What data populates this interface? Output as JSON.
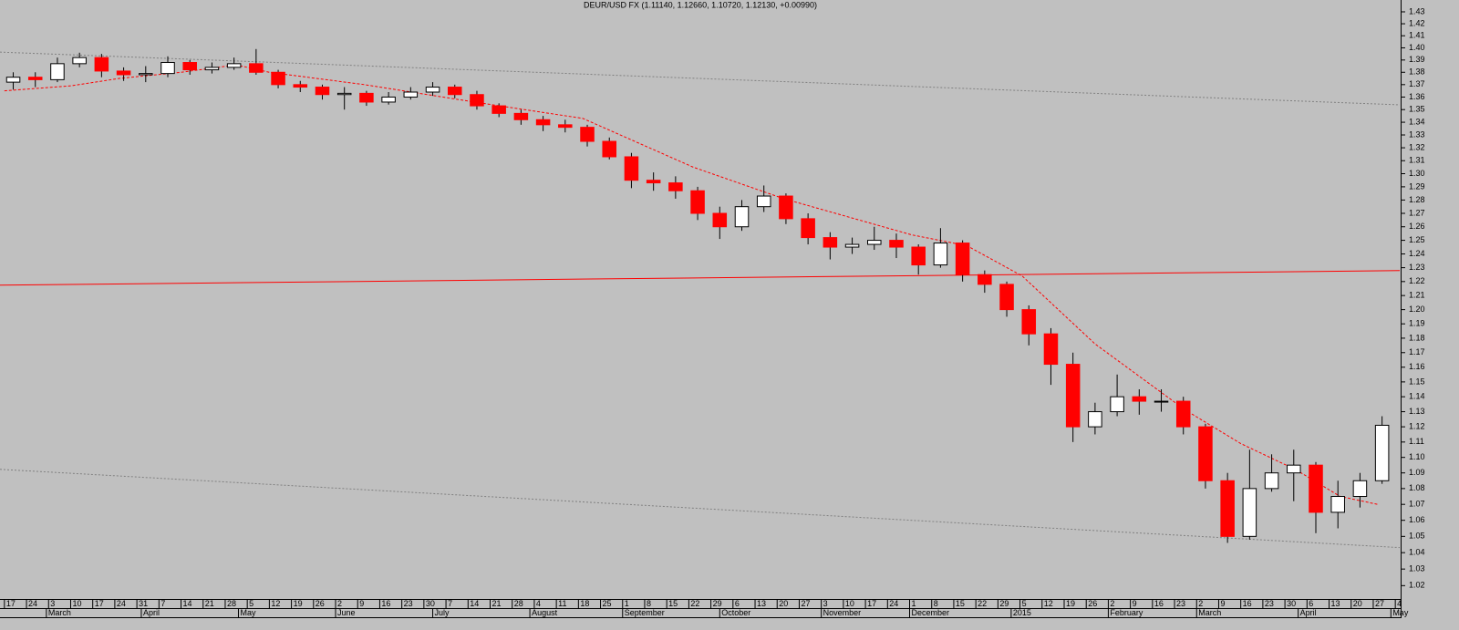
{
  "chart_data": {
    "type": "candlestick",
    "title": "DEUR/USD FX (1.11140, 1.12660, 1.10720, 1.12130, +0.00990)",
    "log_scale": true,
    "up_color": "#ffffff",
    "down_color": "#ff0000",
    "xlim": [
      -0.2,
      63.2
    ],
    "ylim": [
      1.012,
      1.44
    ],
    "yticks": [
      1.02,
      1.03,
      1.04,
      1.05,
      1.06,
      1.07,
      1.08,
      1.09,
      {
        "value": 1.1,
        "label": "1.10"
      },
      1.11,
      1.12,
      1.13,
      1.14,
      1.15,
      1.16,
      1.17,
      1.18,
      1.19,
      {
        "value": 1.2,
        "label": "1.20"
      },
      1.21,
      1.22,
      1.23,
      1.24,
      1.25,
      1.26,
      1.27,
      1.28,
      1.29,
      {
        "value": 1.3,
        "label": "1.30"
      },
      1.31,
      1.32,
      1.33,
      1.34,
      1.35,
      1.36,
      1.37,
      1.38,
      1.39,
      {
        "value": 1.4,
        "label": "1.40"
      },
      1.41,
      1.42,
      1.43
    ],
    "xticks": [
      {
        "value": 0,
        "label": "17"
      },
      {
        "value": 1,
        "label": "24"
      },
      {
        "value": 2,
        "label": "3"
      },
      {
        "value": 3,
        "label": "10"
      },
      {
        "value": 4,
        "label": "17"
      },
      {
        "value": 5,
        "label": "24"
      },
      {
        "value": 6,
        "label": "31"
      },
      {
        "value": 7,
        "label": "7"
      },
      {
        "value": 8,
        "label": "14"
      },
      {
        "value": 9,
        "label": "21"
      },
      {
        "value": 10,
        "label": "28"
      },
      {
        "value": 11,
        "label": "5"
      },
      {
        "value": 12,
        "label": "12"
      },
      {
        "value": 13,
        "label": "19"
      },
      {
        "value": 14,
        "label": "26"
      },
      {
        "value": 15,
        "label": "2"
      },
      {
        "value": 16,
        "label": "9"
      },
      {
        "value": 17,
        "label": "16"
      },
      {
        "value": 18,
        "label": "23"
      },
      {
        "value": 19,
        "label": "30"
      },
      {
        "value": 20,
        "label": "7"
      },
      {
        "value": 21,
        "label": "14"
      },
      {
        "value": 22,
        "label": "21"
      },
      {
        "value": 23,
        "label": "28"
      },
      {
        "value": 24,
        "label": "4"
      },
      {
        "value": 25,
        "label": "11"
      },
      {
        "value": 26,
        "label": "18"
      },
      {
        "value": 27,
        "label": "25"
      },
      {
        "value": 28,
        "label": "1"
      },
      {
        "value": 29,
        "label": "8"
      },
      {
        "value": 30,
        "label": "15"
      },
      {
        "value": 31,
        "label": "22"
      },
      {
        "value": 32,
        "label": "29"
      },
      {
        "value": 33,
        "label": "6"
      },
      {
        "value": 34,
        "label": "13"
      },
      {
        "value": 35,
        "label": "20"
      },
      {
        "value": 36,
        "label": "27"
      },
      {
        "value": 37,
        "label": "3"
      },
      {
        "value": 38,
        "label": "10"
      },
      {
        "value": 39,
        "label": "17"
      },
      {
        "value": 40,
        "label": "24"
      },
      {
        "value": 41,
        "label": "1"
      },
      {
        "value": 42,
        "label": "8"
      },
      {
        "value": 43,
        "label": "15"
      },
      {
        "value": 44,
        "label": "22"
      },
      {
        "value": 45,
        "label": "29"
      },
      {
        "value": 46,
        "label": "5"
      },
      {
        "value": 47,
        "label": "12"
      },
      {
        "value": 48,
        "label": "19"
      },
      {
        "value": 49,
        "label": "26"
      },
      {
        "value": 50,
        "label": "2"
      },
      {
        "value": 51,
        "label": "9"
      },
      {
        "value": 52,
        "label": "16"
      },
      {
        "value": 53,
        "label": "23"
      },
      {
        "value": 54,
        "label": "2"
      },
      {
        "value": 55,
        "label": "9"
      },
      {
        "value": 56,
        "label": "16"
      },
      {
        "value": 57,
        "label": "23"
      },
      {
        "value": 58,
        "label": "30"
      },
      {
        "value": 59,
        "label": "6"
      },
      {
        "value": 60,
        "label": "13"
      },
      {
        "value": 61,
        "label": "20"
      },
      {
        "value": 62,
        "label": "27"
      },
      {
        "value": 63,
        "label": "4"
      }
    ],
    "month_labels": [
      {
        "value": 1.9,
        "label": "March"
      },
      {
        "value": 6.2,
        "label": "April"
      },
      {
        "value": 10.6,
        "label": "May"
      },
      {
        "value": 15,
        "label": "June"
      },
      {
        "value": 19.4,
        "label": "July"
      },
      {
        "value": 23.8,
        "label": "August"
      },
      {
        "value": 28,
        "label": "September"
      },
      {
        "value": 32.4,
        "label": "October"
      },
      {
        "value": 37,
        "label": "November"
      },
      {
        "value": 41,
        "label": "December"
      },
      {
        "value": 45.6,
        "label": "2015"
      },
      {
        "value": 50,
        "label": "February"
      },
      {
        "value": 54,
        "label": "March"
      },
      {
        "value": 58.6,
        "label": "April"
      },
      {
        "value": 62.8,
        "label": "May"
      }
    ],
    "x": [
      0.4,
      1.4,
      2.4,
      3.4,
      4.4,
      5.4,
      6.4,
      7.4,
      8.4,
      9.4,
      10.4,
      11.4,
      12.4,
      13.4,
      14.4,
      15.4,
      16.4,
      17.4,
      18.4,
      19.4,
      20.4,
      21.4,
      22.4,
      23.4,
      24.4,
      25.4,
      26.4,
      27.4,
      28.4,
      29.4,
      30.4,
      31.4,
      32.4,
      33.4,
      34.4,
      35.4,
      36.4,
      37.4,
      38.4,
      39.4,
      40.4,
      41.4,
      42.4,
      43.4,
      44.4,
      45.4,
      46.4,
      47.4,
      48.4,
      49.4,
      50.4,
      51.4,
      52.4,
      53.4,
      54.4,
      55.4,
      56.4,
      57.4,
      58.4,
      59.4,
      60.4,
      61.4,
      62.4
    ],
    "open": [
      1.372,
      1.376,
      1.374,
      1.387,
      1.392,
      1.381,
      1.378,
      1.379,
      1.388,
      1.382,
      1.384,
      1.387,
      1.38,
      1.37,
      1.368,
      1.362,
      1.363,
      1.356,
      1.36,
      1.364,
      1.368,
      1.362,
      1.353,
      1.347,
      1.342,
      1.338,
      1.336,
      1.325,
      1.313,
      1.295,
      1.293,
      1.287,
      1.27,
      1.26,
      1.275,
      1.283,
      1.266,
      1.252,
      1.245,
      1.247,
      1.25,
      1.245,
      1.232,
      1.248,
      1.225,
      1.218,
      1.2,
      1.183,
      1.162,
      1.12,
      1.13,
      1.14,
      1.137,
      1.137,
      1.12,
      1.085,
      1.05,
      1.08,
      1.09,
      1.095,
      1.065,
      1.075,
      1.085
    ],
    "high": [
      1.38,
      1.38,
      1.392,
      1.396,
      1.395,
      1.384,
      1.385,
      1.393,
      1.39,
      1.388,
      1.392,
      1.399,
      1.382,
      1.373,
      1.37,
      1.368,
      1.365,
      1.364,
      1.368,
      1.372,
      1.37,
      1.365,
      1.355,
      1.35,
      1.345,
      1.342,
      1.338,
      1.328,
      1.316,
      1.301,
      1.298,
      1.29,
      1.275,
      1.28,
      1.291,
      1.285,
      1.27,
      1.256,
      1.252,
      1.26,
      1.255,
      1.247,
      1.259,
      1.25,
      1.228,
      1.22,
      1.203,
      1.187,
      1.17,
      1.136,
      1.155,
      1.145,
      1.145,
      1.14,
      1.122,
      1.09,
      1.105,
      1.102,
      1.105,
      1.097,
      1.085,
      1.09,
      1.127
    ],
    "low": [
      1.366,
      1.368,
      1.372,
      1.384,
      1.376,
      1.373,
      1.372,
      1.376,
      1.378,
      1.379,
      1.382,
      1.378,
      1.367,
      1.364,
      1.358,
      1.35,
      1.353,
      1.354,
      1.358,
      1.361,
      1.359,
      1.35,
      1.344,
      1.338,
      1.333,
      1.332,
      1.321,
      1.311,
      1.289,
      1.287,
      1.281,
      1.265,
      1.251,
      1.257,
      1.271,
      1.262,
      1.247,
      1.236,
      1.24,
      1.243,
      1.237,
      1.225,
      1.23,
      1.22,
      1.212,
      1.195,
      1.175,
      1.148,
      1.11,
      1.115,
      1.127,
      1.128,
      1.13,
      1.115,
      1.08,
      1.046,
      1.048,
      1.078,
      1.072,
      1.052,
      1.055,
      1.068,
      1.083
    ],
    "close": [
      1.376,
      1.374,
      1.387,
      1.392,
      1.381,
      1.378,
      1.379,
      1.388,
      1.382,
      1.384,
      1.387,
      1.38,
      1.37,
      1.368,
      1.362,
      1.363,
      1.356,
      1.36,
      1.364,
      1.368,
      1.362,
      1.353,
      1.347,
      1.342,
      1.338,
      1.336,
      1.325,
      1.313,
      1.295,
      1.293,
      1.287,
      1.27,
      1.26,
      1.275,
      1.283,
      1.266,
      1.252,
      1.245,
      1.247,
      1.25,
      1.245,
      1.232,
      1.248,
      1.225,
      1.218,
      1.2,
      1.183,
      1.162,
      1.12,
      1.13,
      1.14,
      1.137,
      1.137,
      1.12,
      1.085,
      1.05,
      1.08,
      1.09,
      1.095,
      1.065,
      1.075,
      1.085,
      1.121
    ],
    "moving_average": {
      "color": "#ff0000",
      "x": [
        0,
        3,
        5.2,
        8,
        10.5,
        12,
        16.3,
        21.3,
        26.2,
        31.2,
        35.3,
        41.1,
        43.6,
        46.1,
        49.4,
        53.5,
        56,
        58.5,
        60.5,
        62.2
      ],
      "values": [
        1.365,
        1.369,
        1.375,
        1.38,
        1.386,
        1.38,
        1.37,
        1.356,
        1.343,
        1.305,
        1.281,
        1.254,
        1.246,
        1.224,
        1.176,
        1.131,
        1.109,
        1.092,
        1.075,
        1.07
      ]
    },
    "lines": [
      {
        "color": "#ff0000",
        "style": "solid",
        "x": [
          -0.2,
          63.2
        ],
        "values": [
          1.2174,
          1.2279
        ]
      },
      {
        "color": "#808080",
        "style": "dotted",
        "x": [
          -0.2,
          63.2
        ],
        "values": [
          1.3965,
          1.3538
        ]
      },
      {
        "color": "#808080",
        "style": "dotted",
        "x": [
          -0.2,
          63.2
        ],
        "values": [
          1.0923,
          1.0431
        ]
      }
    ]
  }
}
